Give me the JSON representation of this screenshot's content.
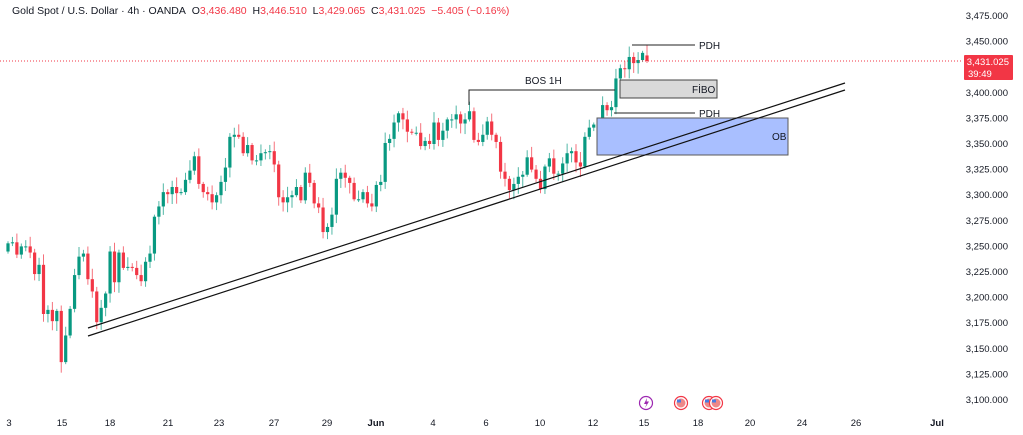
{
  "header": {
    "symbol_title": "Gold Spot / U.S. Dollar · 4h · OANDA",
    "o_label": "O",
    "o_value": "3,436.480",
    "h_label": "H",
    "h_value": "3,446.510",
    "l_label": "L",
    "l_value": "3,429.065",
    "c_label": "C",
    "c_value": "3,431.025",
    "change": "−5.405 (−0.16%)"
  },
  "price_badge": {
    "price": "3,431.025",
    "countdown": "39:49"
  },
  "colors": {
    "up": "#089981",
    "down": "#f23645",
    "fibo_fill": "#d9d9d9",
    "ob_fill": "#a9bfff",
    "event_purple": "#9c27b0"
  },
  "annotations": {
    "bos": "BOS 1H",
    "pdh_top": "PDH",
    "pdh_bottom": "PDH",
    "fibo": "FİBO",
    "ob": "OB"
  },
  "events": [
    "lightning-event",
    "us-flag-event",
    "us-flag-event",
    "us-flag-event"
  ],
  "chart_data": {
    "type": "candlestick",
    "title": "Gold Spot / U.S. Dollar · 4h · OANDA",
    "ylim": [
      3090,
      3485
    ],
    "y_ticks": [
      "3,475.000",
      "3,450.000",
      "3,425.000",
      "3,400.000",
      "3,375.000",
      "3,350.000",
      "3,325.000",
      "3,300.000",
      "3,275.000",
      "3,250.000",
      "3,225.000",
      "3,200.000",
      "3,175.000",
      "3,150.000",
      "3,125.000",
      "3,100.000"
    ],
    "y_tick_values": [
      3475,
      3450,
      3425,
      3400,
      3375,
      3350,
      3325,
      3300,
      3275,
      3250,
      3225,
      3200,
      3175,
      3150,
      3125,
      3100
    ],
    "x_ticks": [
      "3",
      "15",
      "18",
      "21",
      "23",
      "27",
      "29",
      "Jun",
      "4",
      "6",
      "10",
      "12",
      "15",
      "18",
      "20",
      "24",
      "26",
      "Jul"
    ],
    "first_open": 3245,
    "closes": [
      3253,
      3254,
      3242,
      3250,
      3250,
      3244,
      3223,
      3232,
      3184,
      3188,
      3177,
      3187,
      3137,
      3163,
      3189,
      3222,
      3240,
      3243,
      3218,
      3206,
      3176,
      3190,
      3204,
      3245,
      3215,
      3244,
      3229,
      3230,
      3229,
      3222,
      3216,
      3235,
      3243,
      3279,
      3289,
      3303,
      3301,
      3308,
      3302,
      3303,
      3315,
      3324,
      3338,
      3311,
      3303,
      3301,
      3293,
      3300,
      3313,
      3327,
      3357,
      3359,
      3357,
      3341,
      3349,
      3334,
      3334,
      3341,
      3342,
      3343,
      3330,
      3298,
      3293,
      3298,
      3300,
      3308,
      3295,
      3322,
      3312,
      3292,
      3288,
      3264,
      3269,
      3281,
      3316,
      3322,
      3317,
      3312,
      3296,
      3296,
      3303,
      3292,
      3289,
      3310,
      3313,
      3351,
      3355,
      3371,
      3380,
      3374,
      3362,
      3361,
      3361,
      3348,
      3353,
      3350,
      3371,
      3354,
      3363,
      3374,
      3374,
      3379,
      3370,
      3374,
      3382,
      3354,
      3352,
      3359,
      3372,
      3359,
      3352,
      3323,
      3316,
      3305,
      3311,
      3318,
      3320,
      3337,
      3325,
      3316,
      3306,
      3328,
      3336,
      3321,
      3321,
      3331,
      3341,
      3343,
      3332,
      3328,
      3357,
      3366,
      3369,
      3357,
      3388,
      3383,
      3386,
      3414,
      3424,
      3423,
      3435,
      3429,
      3432,
      3439,
      3431.025
    ],
    "last_candle": {
      "open": 3436.48,
      "high": 3446.51,
      "low": 3429.065,
      "close": 3431.025
    },
    "levels": {
      "pdh_top": 3447,
      "bos_1h": 3403,
      "pdh_bottom": 3380,
      "fibo_zone": [
        3395,
        3412
      ],
      "ob_zone": [
        3339,
        3375
      ]
    }
  }
}
